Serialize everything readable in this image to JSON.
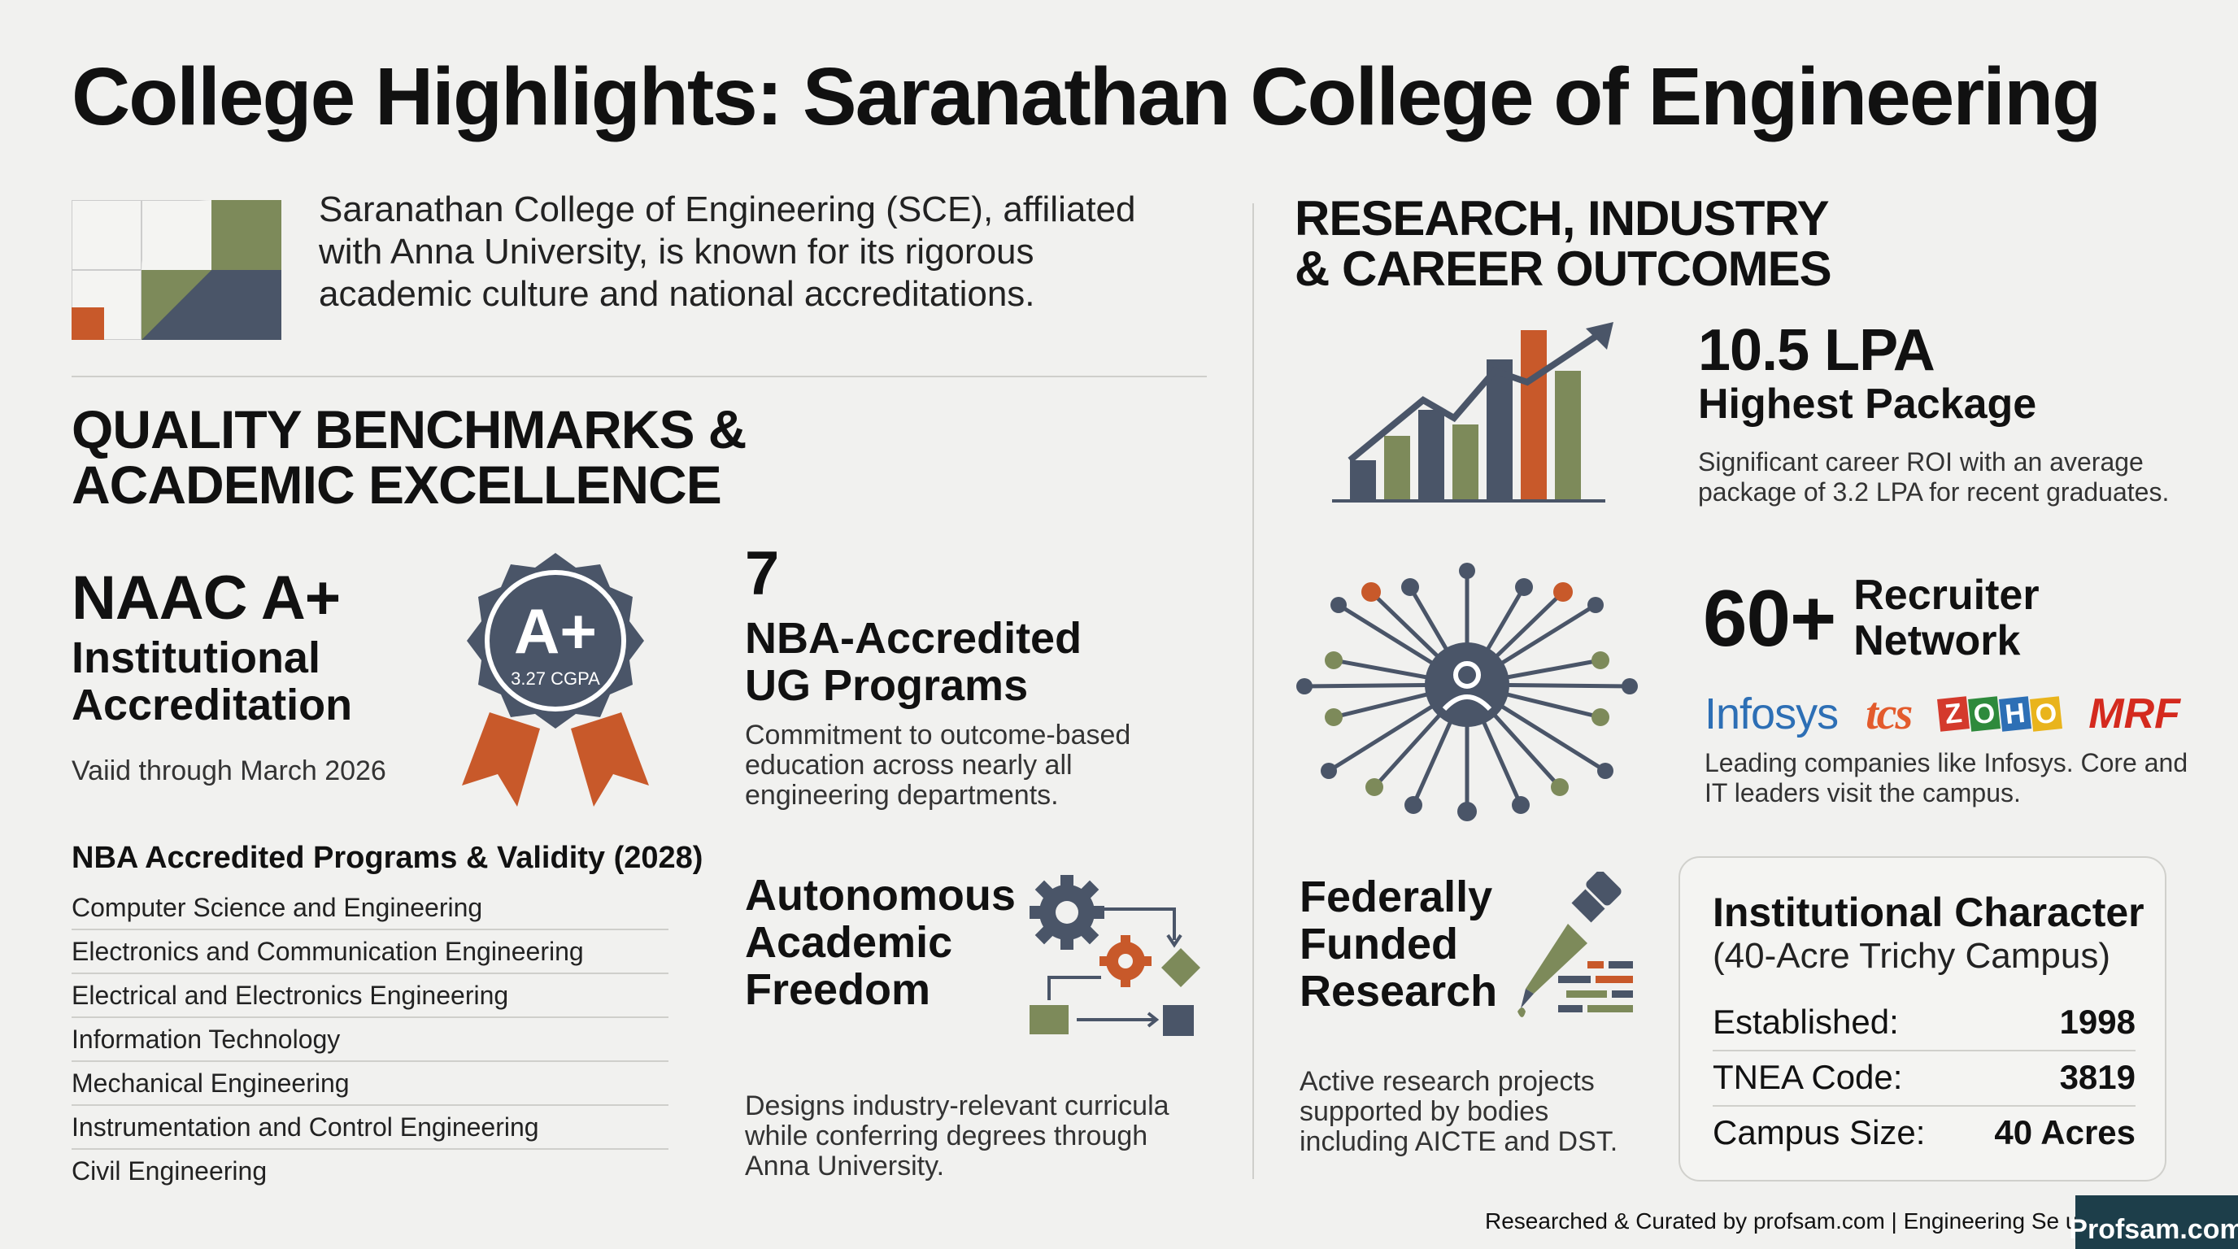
{
  "title": "College Highlights: Saranathan College of Engineering",
  "intro": "Saranathan College of Engineering (SCE), affiliated with Anna University, is known for its rigorous academic culture and national accreditations.",
  "left_section": {
    "heading_line1": "QUALITY BENCHMARKS &",
    "heading_line2": "ACADEMIC EXCELLENCE",
    "naac": {
      "grade": "NAAC A+",
      "line1": "Institutional",
      "line2": "Accreditation",
      "validity": "Vaiid through March 2026",
      "badge_grade": "A+",
      "badge_cgpa": "3.27 CGPA"
    },
    "nba": {
      "count": "7",
      "line1": "NBA-Accredited",
      "line2": "UG Programs",
      "desc": "Commitment to outcome-based education across nearly all engineering departments."
    },
    "programs": {
      "heading": "NBA Accredited Programs & Validity (2028)",
      "items": [
        "Computer Science and Engineering",
        "Electronics and Communication Engineering",
        "Electrical and Electronics Engineering",
        "Information Technology",
        "Mechanical Engineering",
        "Instrumentation and Control Engineering",
        "Civil Engineering"
      ]
    },
    "autonomy": {
      "line1": "Autonomous",
      "line2": "Academic",
      "line3": "Freedom",
      "desc": "Designs industry-relevant curricula while conferring degrees through Anna University."
    }
  },
  "right_section": {
    "heading_line1": "RESEARCH, INDUSTRY",
    "heading_line2": "& CAREER OUTCOMES",
    "package": {
      "value": "10.5 LPA",
      "label": "Highest Package",
      "desc": "Significant career ROI with an average package of 3.2 LPA for recent graduates."
    },
    "recruiters": {
      "value": "60+",
      "label_line1": "Recruiter",
      "label_line2": "Network",
      "logos": [
        "Infosys",
        "tcs",
        "ZOHO",
        "MRF"
      ],
      "desc": "Leading companies like Infosys. Core and IT leaders visit the campus."
    },
    "research": {
      "line1": "Federally",
      "line2": "Funded",
      "line3": "Research",
      "desc": "Active research projects supported by bodies including AICTE and DST."
    },
    "character": {
      "title": "Institutional Character",
      "subtitle": "(40-Acre Trichy Campus)",
      "rows": [
        {
          "label": "Established:",
          "value": "1998"
        },
        {
          "label": "TNEA Code:",
          "value": "3819"
        },
        {
          "label": "Campus Size:",
          "value": "40 Acres"
        }
      ]
    }
  },
  "footer": "Researched & Curated by profsam.com | Engineering Se urie",
  "watermark": "Profsam.com",
  "colors": {
    "slate": "#4a5568",
    "olive": "#7d8a5a",
    "orange": "#c8592a",
    "background": "#f1f1ef"
  }
}
